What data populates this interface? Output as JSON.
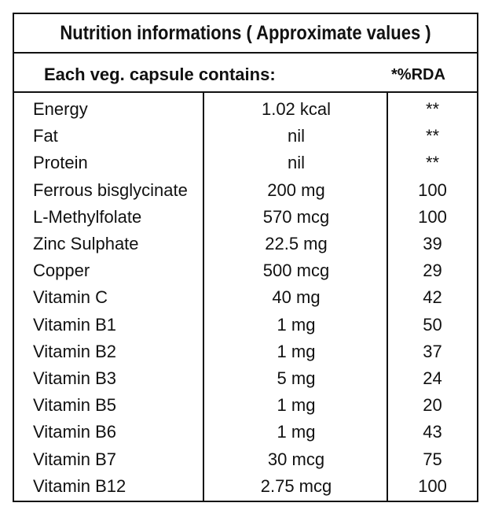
{
  "table": {
    "title": "Nutrition informations ( Approximate values )",
    "header_left": "Each veg. capsule contains:",
    "header_right": "*%RDA",
    "rows": [
      {
        "name": "Energy",
        "amount": "1.02 kcal",
        "rda": "**"
      },
      {
        "name": "Fat",
        "amount": "nil",
        "rda": "**"
      },
      {
        "name": "Protein",
        "amount": "nil",
        "rda": "**"
      },
      {
        "name": "Ferrous bisglycinate",
        "amount": "200 mg",
        "rda": "100"
      },
      {
        "name": "L-Methylfolate",
        "amount": "570 mcg",
        "rda": "100"
      },
      {
        "name": "Zinc Sulphate",
        "amount": "22.5 mg",
        "rda": "39"
      },
      {
        "name": "Copper",
        "amount": "500 mcg",
        "rda": "29"
      },
      {
        "name": "Vitamin C",
        "amount": "40 mg",
        "rda": "42"
      },
      {
        "name": "Vitamin B1",
        "amount": "1 mg",
        "rda": "50"
      },
      {
        "name": "Vitamin B2",
        "amount": "1 mg",
        "rda": "37"
      },
      {
        "name": "Vitamin B3",
        "amount": "5 mg",
        "rda": "24"
      },
      {
        "name": "Vitamin B5",
        "amount": "1 mg",
        "rda": "20"
      },
      {
        "name": "Vitamin B6",
        "amount": "1 mg",
        "rda": "43"
      },
      {
        "name": "Vitamin B7",
        "amount": "30 mcg",
        "rda": "75"
      },
      {
        "name": "Vitamin B12",
        "amount": "2.75 mcg",
        "rda": "100"
      }
    ]
  }
}
